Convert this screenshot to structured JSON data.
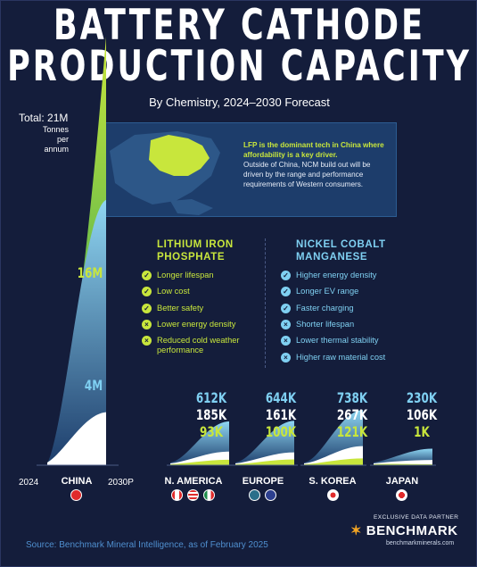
{
  "title_line1": "BATTERY CATHODE",
  "title_line2": "PRODUCTION CAPACITY",
  "subtitle": "By Chemistry, 2024–2030 Forecast",
  "total_label": "Total: 21M",
  "total_unit": "Tonnes per annum",
  "info": {
    "highlight": "LFP is the dominant tech in China where affordability is a key driver.",
    "body": "Outside of China, NCM build out will be driven by the range and performance requirements of Western consumers."
  },
  "lfp": {
    "heading": "LITHIUM IRON PHOSPHATE",
    "items": [
      {
        "text": "Longer lifespan",
        "type": "pro"
      },
      {
        "text": "Low cost",
        "type": "pro"
      },
      {
        "text": "Better safety",
        "type": "pro"
      },
      {
        "text": "Lower energy density",
        "type": "con"
      },
      {
        "text": "Reduced cold weather performance",
        "type": "con"
      }
    ]
  },
  "ncm": {
    "heading": "NICKEL COBALT MANGANESE",
    "items": [
      {
        "text": "Higher energy density",
        "type": "pro"
      },
      {
        "text": "Longer EV range",
        "type": "pro"
      },
      {
        "text": "Faster charging",
        "type": "pro"
      },
      {
        "text": "Shorter lifespan",
        "type": "con"
      },
      {
        "text": "Lower thermal stability",
        "type": "con"
      },
      {
        "text": "Higher raw material cost",
        "type": "con"
      }
    ]
  },
  "chart_data": {
    "type": "area",
    "x": [
      "2024",
      "2030P"
    ],
    "series_colors": {
      "LFP": "#c8e63c",
      "NCM": "#7fd0f2",
      "Other": "#ffffff"
    },
    "regions": [
      {
        "name": "CHINA",
        "lfp": "16M",
        "ncm": "4M",
        "other": "1M",
        "lfp_value": 16000000,
        "ncm_value": 4000000,
        "other_value": 1000000
      },
      {
        "name": "N. AMERICA",
        "lfp": "93K",
        "ncm": "612K",
        "other": "185K",
        "lfp_value": 93000,
        "ncm_value": 612000,
        "other_value": 185000
      },
      {
        "name": "EUROPE",
        "lfp": "100K",
        "ncm": "644K",
        "other": "161K",
        "lfp_value": 100000,
        "ncm_value": 644000,
        "other_value": 161000
      },
      {
        "name": "S. KOREA",
        "lfp": "121K",
        "ncm": "738K",
        "other": "267K",
        "lfp_value": 121000,
        "ncm_value": 738000,
        "other_value": 267000
      },
      {
        "name": "JAPAN",
        "lfp": "1K",
        "ncm": "230K",
        "other": "106K",
        "lfp_value": 1000,
        "ncm_value": 230000,
        "other_value": 106000
      }
    ]
  },
  "year_start": "2024",
  "year_end": "2030P",
  "source": "Source: Benchmark Mineral Intelligence, as of February 2025",
  "partner_label": "EXCLUSIVE DATA PARTNER",
  "brand": "BENCHMARK",
  "brand_url": "benchmarkminerals.com"
}
